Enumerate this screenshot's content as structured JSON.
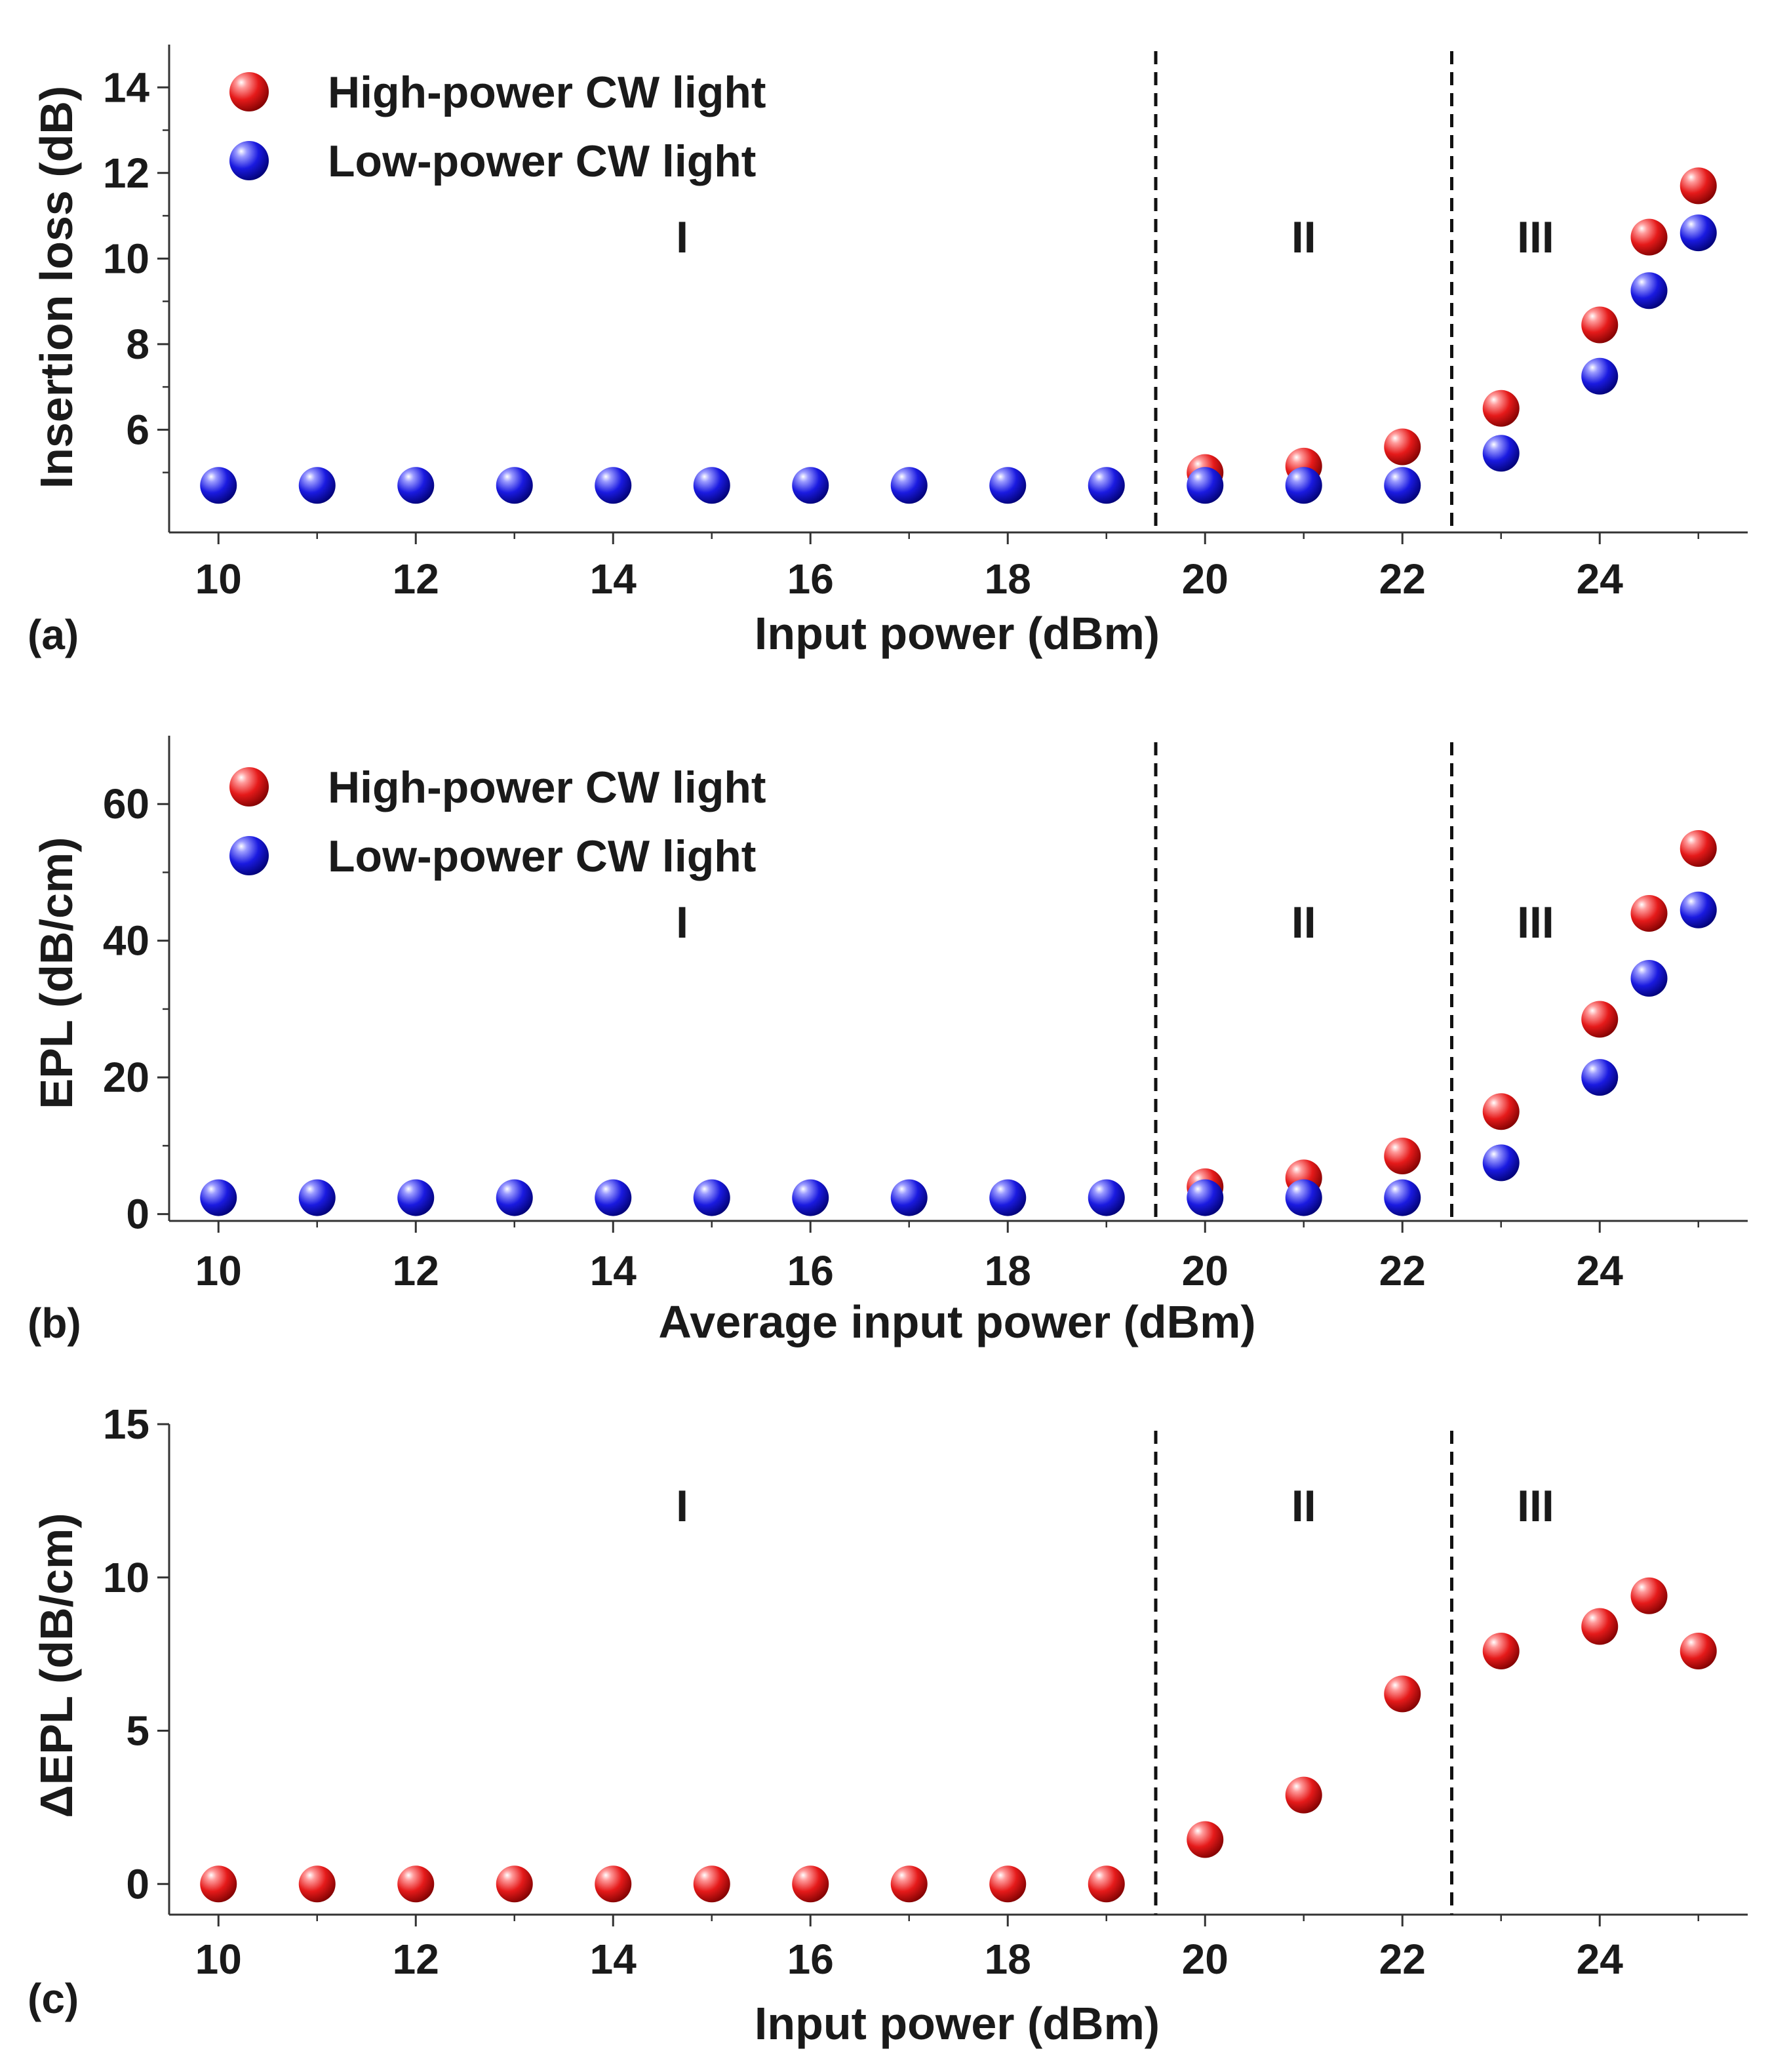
{
  "colors": {
    "high": "#e51a1a",
    "low": "#1a1ae0",
    "axis": "#333333"
  },
  "chart_data": [
    {
      "type": "scatter",
      "panel_label": "(a)",
      "xlabel": "Input power (dBm)",
      "ylabel": "Insertion loss (dB)",
      "xlim": [
        9.5,
        25.5
      ],
      "ylim": [
        3.6,
        15.0
      ],
      "xticks": [
        "10",
        "12",
        "14",
        "16",
        "18",
        "20",
        "22",
        "24"
      ],
      "yticks": [
        "6",
        "8",
        "10",
        "12",
        "14"
      ],
      "region_boundaries": [
        19.5,
        22.5
      ],
      "region_labels": [
        "I",
        "II",
        "III"
      ],
      "legend": [
        "High-power CW light",
        "Low-power CW light"
      ],
      "series": [
        {
          "name": "High-power CW light",
          "color": "high",
          "x": [
            20,
            21,
            22,
            23,
            24,
            24.5,
            25
          ],
          "y": [
            5.0,
            5.15,
            5.6,
            6.5,
            8.45,
            10.5,
            11.7
          ]
        },
        {
          "name": "Low-power CW light",
          "color": "low",
          "x": [
            10,
            11,
            12,
            13,
            14,
            15,
            16,
            17,
            18,
            19,
            20,
            21,
            22,
            23,
            24,
            24.5,
            25
          ],
          "y": [
            4.7,
            4.7,
            4.7,
            4.7,
            4.7,
            4.7,
            4.7,
            4.7,
            4.7,
            4.7,
            4.7,
            4.7,
            4.7,
            5.45,
            7.25,
            9.25,
            10.6
          ]
        }
      ]
    },
    {
      "type": "scatter",
      "panel_label": "(b)",
      "xlabel": "Average input power (dBm)",
      "ylabel": "EPL (dB/cm)",
      "xlim": [
        9.5,
        25.5
      ],
      "ylim": [
        -1,
        70
      ],
      "xticks": [
        "10",
        "12",
        "14",
        "16",
        "18",
        "20",
        "22",
        "24"
      ],
      "yticks": [
        "0",
        "20",
        "40",
        "60"
      ],
      "region_boundaries": [
        19.5,
        22.5
      ],
      "region_labels": [
        "I",
        "II",
        "III"
      ],
      "legend": [
        "High-power CW light",
        "Low-power CW light"
      ],
      "series": [
        {
          "name": "High-power CW light",
          "color": "high",
          "x": [
            20,
            21,
            22,
            23,
            24,
            24.5,
            25
          ],
          "y": [
            4.0,
            5.3,
            8.5,
            15.0,
            28.5,
            44.0,
            53.5
          ]
        },
        {
          "name": "Low-power CW light",
          "color": "low",
          "x": [
            10,
            11,
            12,
            13,
            14,
            15,
            16,
            17,
            18,
            19,
            20,
            21,
            22,
            23,
            24,
            24.5,
            25
          ],
          "y": [
            2.4,
            2.4,
            2.4,
            2.4,
            2.4,
            2.4,
            2.4,
            2.4,
            2.4,
            2.4,
            2.4,
            2.4,
            2.4,
            7.5,
            20.0,
            34.5,
            44.5
          ]
        }
      ]
    },
    {
      "type": "scatter",
      "panel_label": "(c)",
      "xlabel": "Input power (dBm)",
      "ylabel": "ΔEPL (dB/cm)",
      "xlim": [
        9.5,
        25.5
      ],
      "ylim": [
        -1,
        15
      ],
      "xticks": [
        "10",
        "12",
        "14",
        "16",
        "18",
        "20",
        "22",
        "24"
      ],
      "yticks": [
        "0",
        "5",
        "10",
        "15"
      ],
      "region_boundaries": [
        19.5,
        22.5
      ],
      "region_labels": [
        "I",
        "II",
        "III"
      ],
      "legend": [],
      "series": [
        {
          "name": "ΔEPL",
          "color": "high",
          "x": [
            10,
            11,
            12,
            13,
            14,
            15,
            16,
            17,
            18,
            19,
            20,
            21,
            22,
            23,
            24,
            24.5,
            25
          ],
          "y": [
            0,
            0,
            0,
            0,
            0,
            0,
            0,
            0,
            0,
            0,
            1.45,
            2.9,
            6.2,
            7.6,
            8.4,
            9.4,
            7.6
          ]
        }
      ]
    }
  ]
}
